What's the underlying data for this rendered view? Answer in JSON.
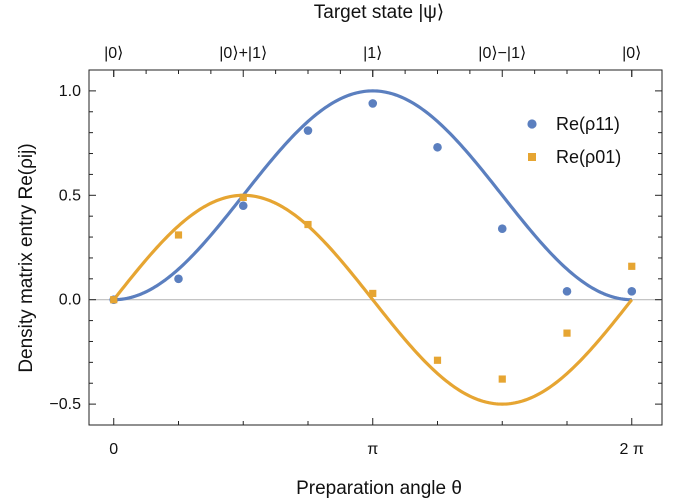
{
  "chart_data": {
    "type": "scatter",
    "title": "Target state |ψ⟩",
    "xlabel": "Preparation angle θ",
    "ylabel": "Density matrix entry Re(ρij)",
    "xlim": [
      -0.3,
      6.65
    ],
    "ylim": [
      -0.6,
      1.1
    ],
    "x_ticks": [
      {
        "value": 0,
        "label": "0"
      },
      {
        "value": 3.14159265,
        "label": "π"
      },
      {
        "value": 6.28318531,
        "label": "2 π"
      }
    ],
    "top_ticks": [
      {
        "value": 0,
        "label": "|0⟩"
      },
      {
        "value": 1.57079633,
        "label": "|0⟩+|1⟩"
      },
      {
        "value": 3.14159265,
        "label": "|1⟩"
      },
      {
        "value": 4.71238898,
        "label": "|0⟩−|1⟩"
      },
      {
        "value": 6.28318531,
        "label": "|0⟩"
      }
    ],
    "y_ticks": [
      {
        "value": 1.0,
        "label": "1.0"
      },
      {
        "value": 0.5,
        "label": "0.5"
      },
      {
        "value": 0.0,
        "label": "0.0"
      },
      {
        "value": -0.5,
        "label": "−0.5"
      }
    ],
    "series": [
      {
        "name": "Re(ρ11)",
        "marker": "circle",
        "color": "#5b7fbf",
        "theory": "sin^2(θ/2)",
        "points": [
          {
            "x": 0.0,
            "y": 0.0
          },
          {
            "x": 0.7854,
            "y": 0.1
          },
          {
            "x": 1.5708,
            "y": 0.45
          },
          {
            "x": 2.3562,
            "y": 0.81
          },
          {
            "x": 3.1416,
            "y": 0.94
          },
          {
            "x": 3.927,
            "y": 0.73
          },
          {
            "x": 4.7124,
            "y": 0.34
          },
          {
            "x": 5.4978,
            "y": 0.04
          },
          {
            "x": 6.2832,
            "y": 0.04
          }
        ]
      },
      {
        "name": "Re(ρ01)",
        "marker": "square",
        "color": "#e6a532",
        "theory": "sin(θ)/2",
        "points": [
          {
            "x": 0.0,
            "y": 0.0
          },
          {
            "x": 0.7854,
            "y": 0.31
          },
          {
            "x": 1.5708,
            "y": 0.49
          },
          {
            "x": 2.3562,
            "y": 0.36
          },
          {
            "x": 3.1416,
            "y": 0.03
          },
          {
            "x": 3.927,
            "y": -0.29
          },
          {
            "x": 4.7124,
            "y": -0.38
          },
          {
            "x": 5.4978,
            "y": -0.16
          },
          {
            "x": 6.2832,
            "y": 0.16
          }
        ]
      }
    ],
    "zero_line": true,
    "grid": false,
    "legend_position": "top-right"
  }
}
